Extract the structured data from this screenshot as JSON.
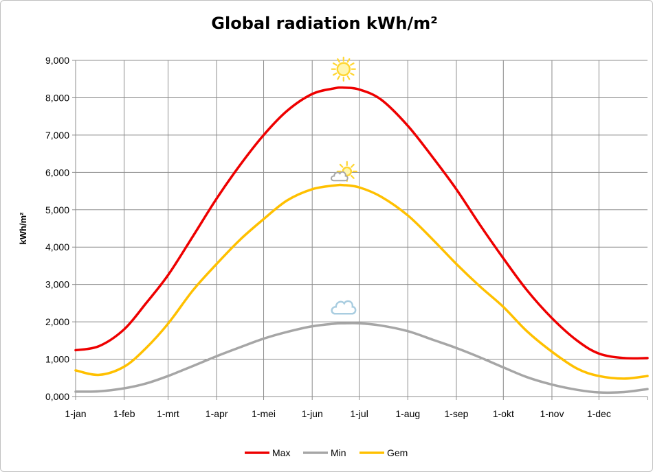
{
  "chart_data": {
    "type": "line",
    "title": "Global radiation kWh/m²",
    "xlabel": "",
    "ylabel": "kWh/m²",
    "ylim": [
      0,
      9
    ],
    "yticks": [
      0,
      1,
      2,
      3,
      4,
      5,
      6,
      7,
      8,
      9
    ],
    "ytick_labels": [
      "0,000",
      "1,000",
      "2,000",
      "3,000",
      "4,000",
      "5,000",
      "6,000",
      "7,000",
      "8,000",
      "9,000"
    ],
    "xlim": [
      0,
      365
    ],
    "xticks": [
      0,
      31,
      59,
      90,
      120,
      151,
      181,
      212,
      243,
      273,
      304,
      334
    ],
    "xtick_labels": [
      "1-jan",
      "1-feb",
      "1-mrt",
      "1-apr",
      "1-mei",
      "1-jun",
      "1-jul",
      "1-aug",
      "1-sep",
      "1-okt",
      "1-nov",
      "1-dec"
    ],
    "grid": true,
    "legend_position": "bottom",
    "x": [
      0,
      15,
      31,
      45,
      59,
      75,
      90,
      105,
      120,
      135,
      151,
      165,
      171,
      181,
      195,
      212,
      228,
      243,
      258,
      273,
      288,
      304,
      320,
      334,
      350,
      365
    ],
    "series": [
      {
        "name": "Max",
        "color": "#ee0000",
        "values": [
          1.24,
          1.35,
          1.8,
          2.5,
          3.25,
          4.3,
          5.3,
          6.2,
          7.0,
          7.65,
          8.1,
          8.25,
          8.27,
          8.22,
          7.95,
          7.25,
          6.4,
          5.55,
          4.6,
          3.7,
          2.85,
          2.1,
          1.5,
          1.15,
          1.03,
          1.03
        ]
      },
      {
        "name": "Min",
        "color": "#a6a6a6",
        "values": [
          0.13,
          0.14,
          0.22,
          0.35,
          0.55,
          0.82,
          1.08,
          1.32,
          1.55,
          1.73,
          1.88,
          1.95,
          1.96,
          1.96,
          1.9,
          1.75,
          1.52,
          1.3,
          1.05,
          0.78,
          0.52,
          0.32,
          0.18,
          0.11,
          0.12,
          0.2
        ]
      },
      {
        "name": "Gem",
        "color": "#ffc000",
        "values": [
          0.7,
          0.58,
          0.8,
          1.3,
          1.95,
          2.85,
          3.55,
          4.2,
          4.75,
          5.25,
          5.55,
          5.65,
          5.66,
          5.6,
          5.35,
          4.85,
          4.2,
          3.55,
          2.95,
          2.4,
          1.75,
          1.2,
          0.75,
          0.55,
          0.48,
          0.55
        ]
      }
    ],
    "annotations": [
      {
        "icon": "sun-icon",
        "series": "Max",
        "near_x": 171
      },
      {
        "icon": "sun-behind-cloud-icon",
        "series": "Gem",
        "near_x": 171
      },
      {
        "icon": "cloud-icon",
        "series": "Min",
        "near_x": 171
      }
    ]
  }
}
